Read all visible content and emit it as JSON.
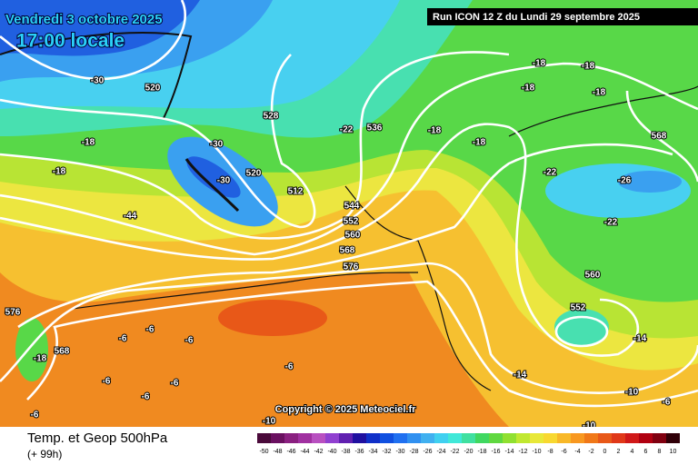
{
  "header": {
    "date": "Vendredi 3 octobre 2025",
    "time": "17:00 locale",
    "run": "Run ICON 12 Z du Lundi 29 septembre 2025"
  },
  "footer": {
    "title": "Temp. et Geop 500hPa",
    "lead": "(+ 99h)",
    "copyright": "Copyright © 2025 Meteociel.fr"
  },
  "map_labels": [
    520,
    528,
    536,
    512,
    544,
    552,
    560,
    568,
    576,
    520,
    568,
    560,
    552,
    576,
    568,
    -30,
    -30,
    -30,
    -18,
    -18,
    -22,
    -18,
    -18,
    -18,
    -18,
    -18,
    -18,
    -22,
    -26,
    -22,
    -14,
    -10,
    -10,
    -10,
    -6,
    -6,
    -6,
    -6,
    -6,
    -6,
    -6,
    -6,
    -18,
    -44,
    -6,
    -14
  ],
  "legend": {
    "ticks": [
      -50,
      -48,
      -46,
      -44,
      -42,
      -40,
      -38,
      -36,
      -34,
      -32,
      -30,
      -28,
      -26,
      -24,
      -22,
      -20,
      -18,
      -16,
      -14,
      -12,
      -10,
      -8,
      -6,
      -4,
      -2,
      0,
      2,
      4,
      6,
      8,
      10
    ],
    "colors": [
      "#4a0a3a",
      "#6a1060",
      "#8a2080",
      "#a030a0",
      "#b850c0",
      "#9040d0",
      "#6020b0",
      "#2010a0",
      "#1030c8",
      "#1050e0",
      "#2070f0",
      "#3090f0",
      "#40b0f0",
      "#40d0f0",
      "#40e8d8",
      "#40e0a0",
      "#40d860",
      "#60d840",
      "#90e030",
      "#c0e830",
      "#e8e838",
      "#f8d830",
      "#f8b828",
      "#f89820",
      "#f07818",
      "#e85818",
      "#e03818",
      "#d01818",
      "#b00010",
      "#800010",
      "#300008"
    ]
  }
}
